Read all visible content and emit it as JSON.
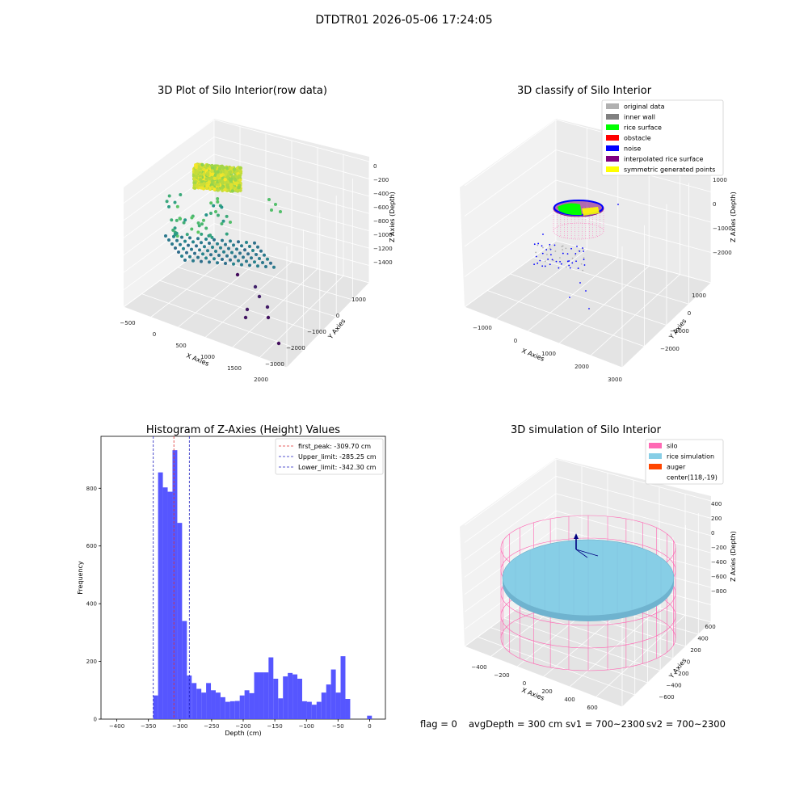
{
  "figure": {
    "title": "DTDTR01 2026-05-06 17:24:05",
    "status": {
      "flag": "flag = 0",
      "avg_depth": "avgDepth = 300 cm",
      "sv1": "sv1 = 700~2300",
      "sv2": "sv2 = 700~2300"
    },
    "colors": {
      "histogram_bar": "#4d4dff",
      "first_peak": "#e03030",
      "limits": "#2020c0",
      "silo": "#ff69b4",
      "rice_simulation": "#87cee6",
      "auger": "#ff4500",
      "rice_surface": "#00ff00",
      "noise": "#0000ff",
      "original_data": "#b0b0b0",
      "inner_wall": "#808080",
      "obstacle": "#ff0000",
      "interpolated_rice_surface": "#800080",
      "symmetric_generated_points": "#ffff00"
    }
  },
  "chart_data": [
    {
      "type": "scatter",
      "title": "3D Plot of Silo Interior(row data)",
      "xlabel": "X Axies",
      "ylabel": "Y Axies",
      "zlabel": "Z Axies (Depth)",
      "x_ticks": [
        "−500",
        "0",
        "500",
        "1000",
        "1500",
        "2000"
      ],
      "y_ticks": [
        "1000",
        "0",
        "−1000",
        "−2000",
        "−3000"
      ],
      "z_ticks": [
        "0",
        "−200",
        "−400",
        "−600",
        "−800",
        "−1000",
        "−1200",
        "−1400"
      ],
      "xlim": [
        -600,
        2100
      ],
      "ylim": [
        -3100,
        1600
      ],
      "zlim": [
        -1500,
        50
      ],
      "grid": true,
      "colormap": "viridis by depth"
    },
    {
      "type": "scatter",
      "title": "3D classify of Silo Interior",
      "xlabel": "X Axies",
      "ylabel": "Y Axies",
      "zlabel": "Z Axies (Depth)",
      "x_ticks": [
        "−1000",
        "0",
        "1000",
        "2000",
        "3000"
      ],
      "y_ticks": [
        "1000",
        "0",
        "−1000",
        "−2000"
      ],
      "z_ticks": [
        "1000",
        "0",
        "−1000",
        "−2000"
      ],
      "grid": true,
      "legend_position": "top-right",
      "legend": [
        {
          "label": "original data",
          "color": "#b0b0b0"
        },
        {
          "label": "inner wall",
          "color": "#808080"
        },
        {
          "label": "rice surface",
          "color": "#00ff00"
        },
        {
          "label": "obstacle",
          "color": "#ff0000"
        },
        {
          "label": "noise",
          "color": "#0000ff"
        },
        {
          "label": "interpolated rice surface",
          "color": "#800080"
        },
        {
          "label": "symmetric generated points",
          "color": "#ffff00"
        }
      ]
    },
    {
      "type": "bar",
      "title": "Histogram of Z-Axies (Height) Values",
      "xlabel": "Depth (cm)",
      "ylabel": "Frequency",
      "xlim": [
        -425,
        25
      ],
      "ylim": [
        0,
        980
      ],
      "x_ticks": [
        -400,
        -350,
        -300,
        -250,
        -200,
        -150,
        -100,
        -50,
        0
      ],
      "y_ticks": [
        0,
        200,
        400,
        600,
        800
      ],
      "bin_width": 7.6,
      "bins": [
        [
          -342.3,
          82
        ],
        [
          -334.7,
          855
        ],
        [
          -327.1,
          803
        ],
        [
          -319.5,
          788
        ],
        [
          -311.9,
          932
        ],
        [
          -304.3,
          680
        ],
        [
          -296.7,
          340
        ],
        [
          -289.1,
          151
        ],
        [
          -281.5,
          125
        ],
        [
          -273.9,
          105
        ],
        [
          -266.3,
          92
        ],
        [
          -258.7,
          125
        ],
        [
          -251.1,
          100
        ],
        [
          -243.5,
          92
        ],
        [
          -235.9,
          76
        ],
        [
          -228.3,
          60
        ],
        [
          -220.7,
          62
        ],
        [
          -213.1,
          63
        ],
        [
          -205.5,
          82
        ],
        [
          -197.9,
          100
        ],
        [
          -190.3,
          90
        ],
        [
          -182.7,
          162
        ],
        [
          -175.1,
          162
        ],
        [
          -167.5,
          162
        ],
        [
          -159.9,
          214
        ],
        [
          -152.3,
          140
        ],
        [
          -144.7,
          72
        ],
        [
          -137.1,
          148
        ],
        [
          -129.5,
          160
        ],
        [
          -121.9,
          155
        ],
        [
          -114.3,
          140
        ],
        [
          -106.7,
          62
        ],
        [
          -99.1,
          60
        ],
        [
          -91.5,
          50
        ],
        [
          -83.9,
          60
        ],
        [
          -76.3,
          92
        ],
        [
          -68.7,
          120
        ],
        [
          -61.1,
          172
        ],
        [
          -53.5,
          92
        ],
        [
          -45.9,
          218
        ],
        [
          -38.3,
          70
        ],
        [
          -4.0,
          12
        ]
      ],
      "lines": [
        {
          "label": "first_peak: -309.70 cm",
          "value": -309.7,
          "style": "dashed",
          "color": "#e03030"
        },
        {
          "label": "Upper_limit: -285.25 cm",
          "value": -285.25,
          "style": "dashed",
          "color": "#2020c0"
        },
        {
          "label": "Lower_limit: -342.30 cm",
          "value": -342.3,
          "style": "dashed",
          "color": "#2020c0"
        }
      ],
      "legend_position": "top-right"
    },
    {
      "type": "area",
      "title": "3D simulation of Silo Interior",
      "xlabel": "X Axies",
      "ylabel": "Y Axies",
      "zlabel": "Z Axies (Depth)",
      "x_ticks": [
        "−400",
        "−200",
        "0",
        "200",
        "400",
        "600"
      ],
      "y_ticks": [
        "600",
        "400",
        "200",
        "0",
        "−200",
        "−400",
        "−600"
      ],
      "z_ticks": [
        "400",
        "200",
        "0",
        "−200",
        "−400",
        "−600",
        "−800"
      ],
      "grid": true,
      "legend_position": "top-right",
      "legend": [
        {
          "label": "silo",
          "color": "#ff69b4"
        },
        {
          "label": "rice simulation",
          "color": "#87cee6"
        },
        {
          "label": "auger",
          "color": "#ff4500"
        },
        {
          "label": "center(118,-19)",
          "color": ""
        }
      ]
    }
  ]
}
